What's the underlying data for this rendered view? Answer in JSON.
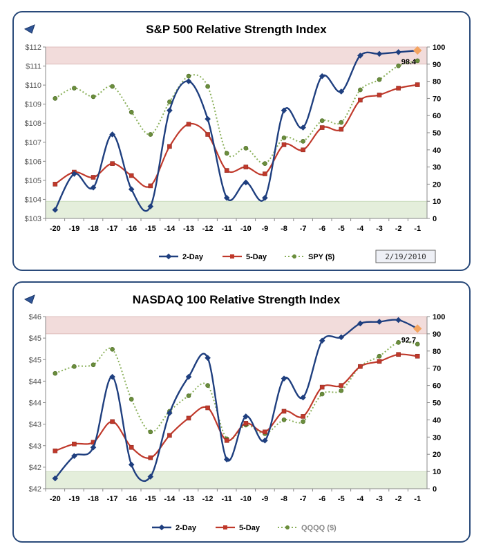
{
  "colors": {
    "two_day": "#1f3f7f",
    "five_day": "#c0392b",
    "spy": "#8ab05a",
    "overbought_band": "#f2dcdb",
    "oversold_band": "#e4eedb",
    "nav_arrow": "#2f5597",
    "last_marker": "#f4a460"
  },
  "icons": {
    "nav": "back-arrow-icon"
  },
  "chart_data": [
    {
      "type": "line",
      "title": "S&P 500 Relative Strength Index",
      "categories": [
        "-20",
        "-19",
        "-18",
        "-17",
        "-16",
        "-15",
        "-14",
        "-13",
        "-12",
        "-11",
        "-10",
        "-9",
        "-8",
        "-7",
        "-6",
        "-5",
        "-4",
        "-3",
        "-2",
        "-1"
      ],
      "y_right": {
        "min": 0,
        "max": 100,
        "ticks": [
          "0",
          "10",
          "20",
          "30",
          "40",
          "50",
          "60",
          "70",
          "80",
          "90",
          "100"
        ]
      },
      "y_left": {
        "ticks": [
          "$103",
          "$104",
          "$105",
          "$106",
          "$107",
          "$108",
          "$109",
          "$110",
          "$111",
          "$112"
        ]
      },
      "bands": {
        "overbought": [
          90,
          100
        ],
        "oversold": [
          0,
          10
        ]
      },
      "series": [
        {
          "name": "2-Day",
          "values": [
            5,
            26,
            18,
            49,
            17,
            7,
            63,
            80,
            58,
            12,
            21,
            12,
            63,
            53,
            83,
            74,
            95,
            96,
            97,
            98
          ]
        },
        {
          "name": "5-Day",
          "values": [
            20,
            27,
            24,
            32,
            25,
            19,
            42,
            55,
            49,
            28,
            30,
            26,
            43,
            40,
            53,
            52,
            69,
            72,
            76,
            78
          ]
        },
        {
          "name": "SPY ($)",
          "values": [
            70,
            76,
            71,
            77,
            62,
            49,
            68,
            83,
            77,
            38,
            41,
            32,
            47,
            45,
            57,
            56,
            75,
            81,
            89,
            92
          ]
        }
      ],
      "annotation": "98.4",
      "date": "2/19/2010"
    },
    {
      "type": "line",
      "title": "NASDAQ 100 Relative Strength Index",
      "categories": [
        "-20",
        "-19",
        "-18",
        "-17",
        "-16",
        "-15",
        "-14",
        "-13",
        "-12",
        "-11",
        "-10",
        "-9",
        "-8",
        "-7",
        "-6",
        "-5",
        "-4",
        "-3",
        "-2",
        "-1"
      ],
      "y_right": {
        "min": 0,
        "max": 100,
        "ticks": [
          "0",
          "10",
          "20",
          "30",
          "40",
          "50",
          "60",
          "70",
          "80",
          "90",
          "100"
        ]
      },
      "y_left": {
        "ticks": [
          "$42",
          "$42",
          "$43",
          "$43",
          "$44",
          "$44",
          "$45",
          "$45",
          "$46"
        ]
      },
      "bands": {
        "overbought": [
          90,
          100
        ],
        "oversold": [
          0,
          10
        ]
      },
      "series": [
        {
          "name": "2-Day",
          "values": [
            6,
            19,
            24,
            65,
            14,
            7,
            44,
            65,
            76,
            17,
            42,
            28,
            64,
            53,
            86,
            88,
            96,
            97,
            98,
            93
          ]
        },
        {
          "name": "5-Day",
          "values": [
            22,
            26,
            27,
            39,
            24,
            18,
            31,
            41,
            47,
            28,
            38,
            33,
            45,
            42,
            59,
            60,
            71,
            74,
            78,
            77
          ]
        },
        {
          "name": "QQQQ ($)",
          "values": [
            67,
            71,
            72,
            81,
            52,
            33,
            45,
            54,
            60,
            29,
            37,
            32,
            40,
            39,
            55,
            57,
            71,
            77,
            85,
            84
          ]
        }
      ],
      "annotation": "92.7"
    }
  ]
}
